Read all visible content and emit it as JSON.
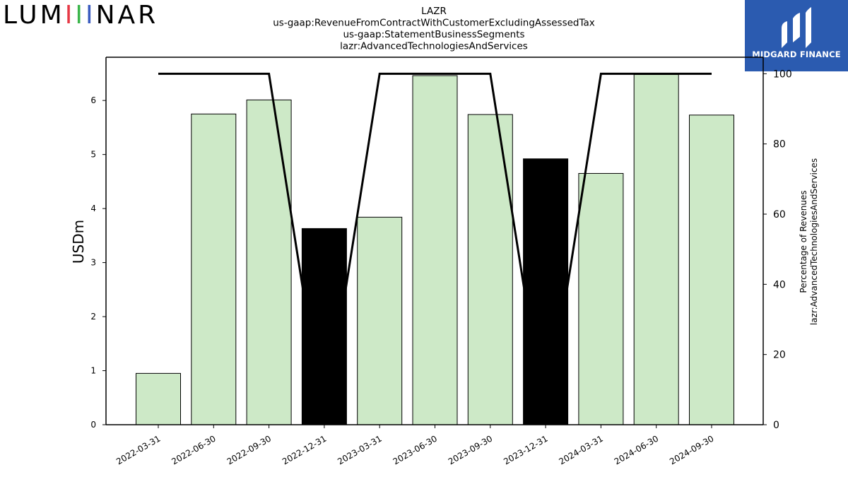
{
  "brand": {
    "left_logo": "LUMINAR",
    "right_logo": "MIDGARD FINANCE"
  },
  "colors": {
    "positive_bar": "#cde9c7",
    "negative_bar": "#000000",
    "line": "#000000",
    "badge": "#2b5bb0"
  },
  "chart_data": {
    "type": "bar",
    "title": [
      "LAZR",
      "us-gaap:RevenueFromContractWithCustomerExcludingAssessedTax",
      "us-gaap:StatementBusinessSegments",
      "lazr:AdvancedTechnologiesAndServices"
    ],
    "ylabel": "USDm",
    "y2label": [
      "Percentage of Revenues",
      "lazr:AdvancedTechnologiesAndServices"
    ],
    "categories": [
      "2022-03-31",
      "2022-06-30",
      "2022-09-30",
      "2022-12-31",
      "2023-03-31",
      "2023-06-30",
      "2023-09-30",
      "2023-12-31",
      "2024-03-31",
      "2024-06-30",
      "2024-09-30"
    ],
    "values": [
      0.95,
      5.75,
      6.01,
      3.63,
      3.84,
      6.46,
      5.74,
      4.92,
      4.65,
      6.48,
      5.73
    ],
    "negative": [
      false,
      false,
      false,
      true,
      false,
      false,
      false,
      true,
      false,
      false,
      false
    ],
    "ylim": [
      0,
      6.8
    ],
    "yticks": [
      0,
      1,
      2,
      3,
      4,
      5,
      6
    ],
    "y2lim": [
      0,
      104.7
    ],
    "y2ticks": [
      0,
      20,
      40,
      60,
      80,
      100
    ],
    "percentage_series": [
      100,
      100,
      100,
      -100,
      100,
      100,
      100,
      -100,
      100,
      100,
      100
    ]
  }
}
